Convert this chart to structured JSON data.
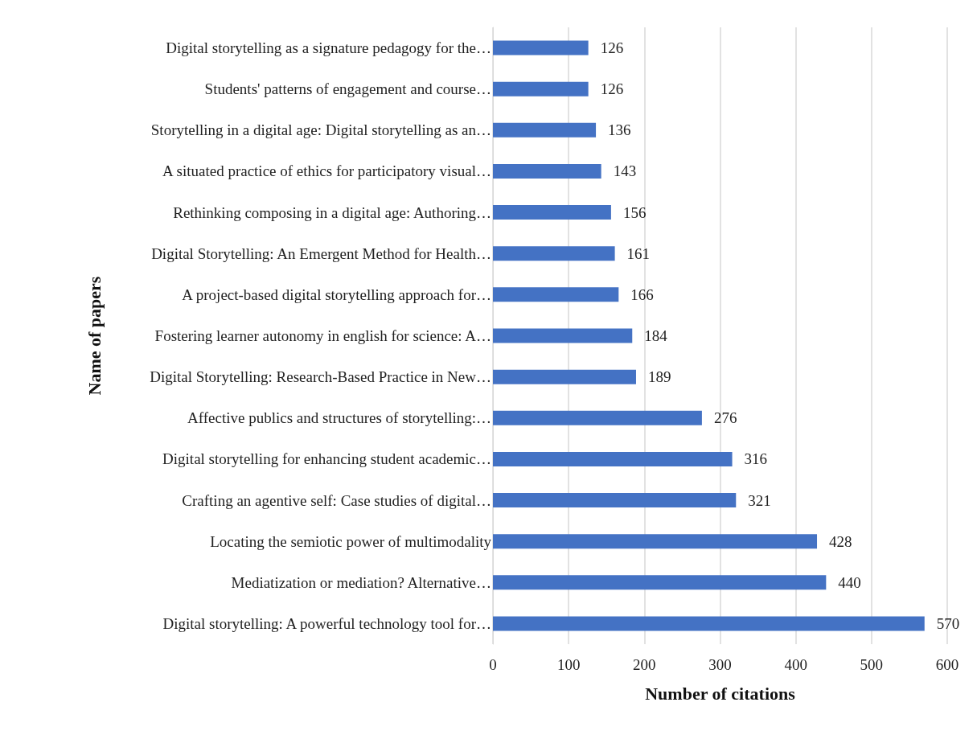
{
  "chart_data": {
    "type": "bar",
    "orientation": "horizontal",
    "xlabel": "Number of citations",
    "ylabel": "Name of papers",
    "categories": [
      "Digital storytelling as a signature pedagogy for the…",
      "Students' patterns of engagement and course…",
      "Storytelling in a digital age: Digital storytelling as an…",
      "A situated practice of ethics for participatory visual…",
      "Rethinking composing in a digital age: Authoring…",
      "Digital Storytelling: An Emergent Method for Health…",
      "A project-based digital storytelling approach for…",
      "Fostering learner autonomy in english for science: A…",
      "Digital Storytelling: Research-Based Practice in New…",
      "Affective publics and structures of storytelling:…",
      "Digital storytelling for enhancing student academic…",
      "Crafting an agentive self: Case studies of digital…",
      "Locating the semiotic power of multimodality",
      "Mediatization or mediation? Alternative…",
      "Digital storytelling: A powerful technology tool for…"
    ],
    "values": [
      126,
      126,
      136,
      143,
      156,
      161,
      166,
      184,
      189,
      276,
      316,
      321,
      428,
      440,
      570
    ],
    "color": "#4472c4",
    "xlim": [
      0,
      600
    ],
    "xticks": [
      0,
      100,
      200,
      300,
      400,
      500,
      600
    ],
    "grid": "x",
    "data_labels": true
  }
}
